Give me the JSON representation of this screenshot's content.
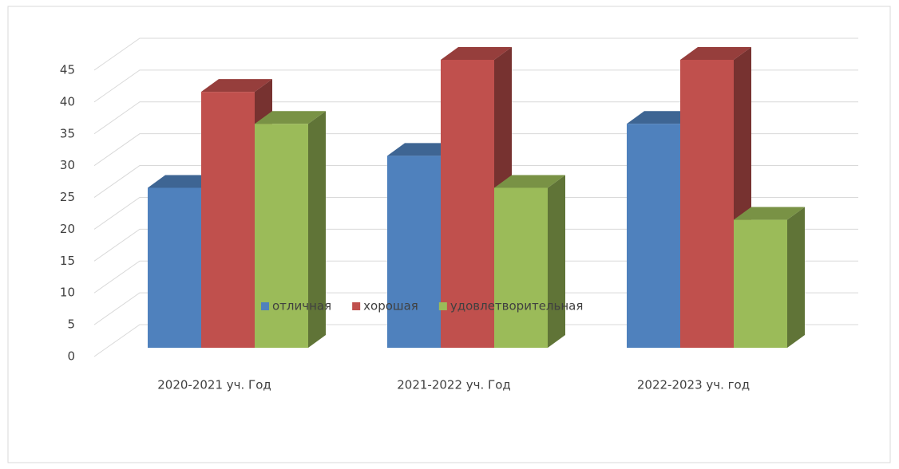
{
  "chart_data": {
    "type": "bar3d",
    "categories": [
      "2020-2021 уч. Год",
      "2021-2022 уч. Год",
      "2022-2023 уч. год"
    ],
    "series": [
      {
        "name": "отличная",
        "color": "#4f81bd",
        "values": [
          25,
          30,
          35
        ]
      },
      {
        "name": "хорошая",
        "color": "#c0504d",
        "values": [
          40,
          45,
          45
        ]
      },
      {
        "name": "удовлетворительная",
        "color": "#9bbb59",
        "values": [
          35,
          25,
          20
        ]
      }
    ],
    "ylim": [
      0,
      45
    ],
    "yticks": [
      0,
      5,
      10,
      15,
      20,
      25,
      30,
      35,
      40,
      45
    ],
    "grid": true,
    "legend": "bottom"
  }
}
